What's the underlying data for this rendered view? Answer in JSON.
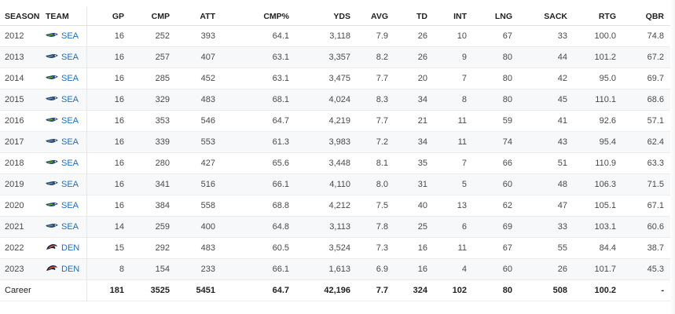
{
  "table": {
    "columns": [
      "SEASON",
      "TEAM",
      "GP",
      "CMP",
      "ATT",
      "CMP%",
      "YDS",
      "AVG",
      "TD",
      "INT",
      "LNG",
      "SACK",
      "RTG",
      "QBR"
    ],
    "rows": [
      {
        "season": "2012",
        "team": "SEA",
        "logo": "seahawks-logo-icon",
        "gp": "16",
        "cmp": "252",
        "att": "393",
        "cmp_pct": "64.1",
        "yds": "3,118",
        "avg": "7.9",
        "td": "26",
        "int": "10",
        "lng": "67",
        "sack": "33",
        "rtg": "100.0",
        "qbr": "74.8"
      },
      {
        "season": "2013",
        "team": "SEA",
        "logo": "seahawks-logo-icon",
        "gp": "16",
        "cmp": "257",
        "att": "407",
        "cmp_pct": "63.1",
        "yds": "3,357",
        "avg": "8.2",
        "td": "26",
        "int": "9",
        "lng": "80",
        "sack": "44",
        "rtg": "101.2",
        "qbr": "67.2"
      },
      {
        "season": "2014",
        "team": "SEA",
        "logo": "seahawks-logo-icon",
        "gp": "16",
        "cmp": "285",
        "att": "452",
        "cmp_pct": "63.1",
        "yds": "3,475",
        "avg": "7.7",
        "td": "20",
        "int": "7",
        "lng": "80",
        "sack": "42",
        "rtg": "95.0",
        "qbr": "69.7"
      },
      {
        "season": "2015",
        "team": "SEA",
        "logo": "seahawks-logo-icon",
        "gp": "16",
        "cmp": "329",
        "att": "483",
        "cmp_pct": "68.1",
        "yds": "4,024",
        "avg": "8.3",
        "td": "34",
        "int": "8",
        "lng": "80",
        "sack": "45",
        "rtg": "110.1",
        "qbr": "68.6"
      },
      {
        "season": "2016",
        "team": "SEA",
        "logo": "seahawks-logo-icon",
        "gp": "16",
        "cmp": "353",
        "att": "546",
        "cmp_pct": "64.7",
        "yds": "4,219",
        "avg": "7.7",
        "td": "21",
        "int": "11",
        "lng": "59",
        "sack": "41",
        "rtg": "92.6",
        "qbr": "57.1"
      },
      {
        "season": "2017",
        "team": "SEA",
        "logo": "seahawks-logo-icon",
        "gp": "16",
        "cmp": "339",
        "att": "553",
        "cmp_pct": "61.3",
        "yds": "3,983",
        "avg": "7.2",
        "td": "34",
        "int": "11",
        "lng": "74",
        "sack": "43",
        "rtg": "95.4",
        "qbr": "62.4"
      },
      {
        "season": "2018",
        "team": "SEA",
        "logo": "seahawks-logo-icon",
        "gp": "16",
        "cmp": "280",
        "att": "427",
        "cmp_pct": "65.6",
        "yds": "3,448",
        "avg": "8.1",
        "td": "35",
        "int": "7",
        "lng": "66",
        "sack": "51",
        "rtg": "110.9",
        "qbr": "63.3"
      },
      {
        "season": "2019",
        "team": "SEA",
        "logo": "seahawks-logo-icon",
        "gp": "16",
        "cmp": "341",
        "att": "516",
        "cmp_pct": "66.1",
        "yds": "4,110",
        "avg": "8.0",
        "td": "31",
        "int": "5",
        "lng": "60",
        "sack": "48",
        "rtg": "106.3",
        "qbr": "71.5"
      },
      {
        "season": "2020",
        "team": "SEA",
        "logo": "seahawks-logo-icon",
        "gp": "16",
        "cmp": "384",
        "att": "558",
        "cmp_pct": "68.8",
        "yds": "4,212",
        "avg": "7.5",
        "td": "40",
        "int": "13",
        "lng": "62",
        "sack": "47",
        "rtg": "105.1",
        "qbr": "67.1"
      },
      {
        "season": "2021",
        "team": "SEA",
        "logo": "seahawks-logo-icon",
        "gp": "14",
        "cmp": "259",
        "att": "400",
        "cmp_pct": "64.8",
        "yds": "3,113",
        "avg": "7.8",
        "td": "25",
        "int": "6",
        "lng": "69",
        "sack": "33",
        "rtg": "103.1",
        "qbr": "60.6"
      },
      {
        "season": "2022",
        "team": "DEN",
        "logo": "broncos-logo-icon",
        "gp": "15",
        "cmp": "292",
        "att": "483",
        "cmp_pct": "60.5",
        "yds": "3,524",
        "avg": "7.3",
        "td": "16",
        "int": "11",
        "lng": "67",
        "sack": "55",
        "rtg": "84.4",
        "qbr": "38.7"
      },
      {
        "season": "2023",
        "team": "DEN",
        "logo": "broncos-logo-icon",
        "gp": "8",
        "cmp": "154",
        "att": "233",
        "cmp_pct": "66.1",
        "yds": "1,613",
        "avg": "6.9",
        "td": "16",
        "int": "4",
        "lng": "60",
        "sack": "26",
        "rtg": "101.7",
        "qbr": "45.3"
      }
    ],
    "career": {
      "label": "Career",
      "gp": "181",
      "cmp": "3525",
      "att": "5451",
      "cmp_pct": "64.7",
      "yds": "42,196",
      "avg": "7.7",
      "td": "324",
      "int": "102",
      "lng": "80",
      "sack": "508",
      "rtg": "100.2",
      "qbr": "-"
    }
  },
  "colors": {
    "team_link": "#1a6fc4",
    "seahawks_blue": "#2b4c7e",
    "seahawks_green": "#69be28",
    "broncos_orange": "#fb4f14",
    "broncos_navy": "#0a2343"
  }
}
